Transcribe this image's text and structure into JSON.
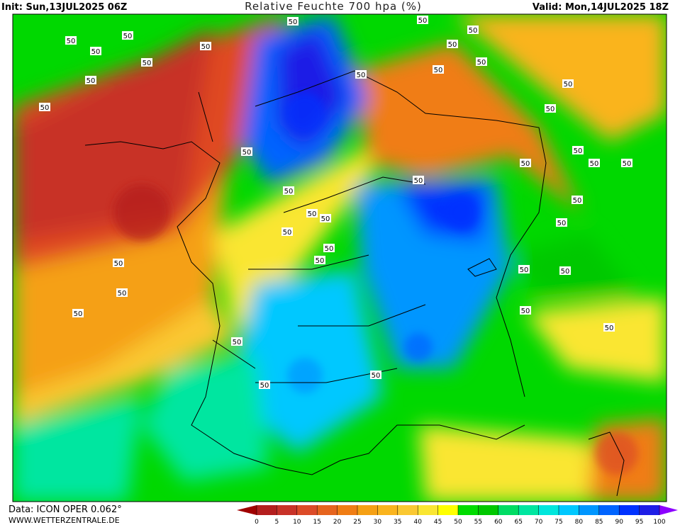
{
  "header": {
    "init": "Init: Sun,13JUL2025 06Z",
    "title": "Relative Feuchte 700 hpa (%)",
    "valid": "Valid: Mon,14JUL2025 18Z"
  },
  "footer": {
    "model": "Data: ICON OPER 0.062°",
    "site": "WWW.WETTERZENTRALE.DE"
  },
  "contour_labels": [
    "50",
    "50",
    "50",
    "50",
    "50",
    "50",
    "50",
    "50",
    "50",
    "50",
    "50",
    "50",
    "50",
    "50",
    "50",
    "50",
    "50",
    "50",
    "50",
    "50",
    "50",
    "50",
    "50",
    "50",
    "50",
    "50",
    "50",
    "50",
    "50",
    "50",
    "50",
    "50",
    "50",
    "50",
    "50",
    "50",
    "50",
    "50",
    "50",
    "50"
  ],
  "colorbar": {
    "ticks": [
      0,
      5,
      10,
      15,
      20,
      25,
      30,
      35,
      40,
      45,
      50,
      55,
      60,
      65,
      70,
      75,
      80,
      85,
      90,
      95,
      100
    ],
    "under_color": "#a00000",
    "over_color": "#8c00ff",
    "colors": [
      "#b41e1e",
      "#c83228",
      "#dc4b28",
      "#e6641e",
      "#f07d14",
      "#f5a014",
      "#fab41e",
      "#fac832",
      "#fae632",
      "#ffff00",
      "#00dc00",
      "#00c800",
      "#00dc64",
      "#00e6a0",
      "#00e6dc",
      "#00c8ff",
      "#0096ff",
      "#0064ff",
      "#0032ff",
      "#1e1ee6"
    ]
  }
}
